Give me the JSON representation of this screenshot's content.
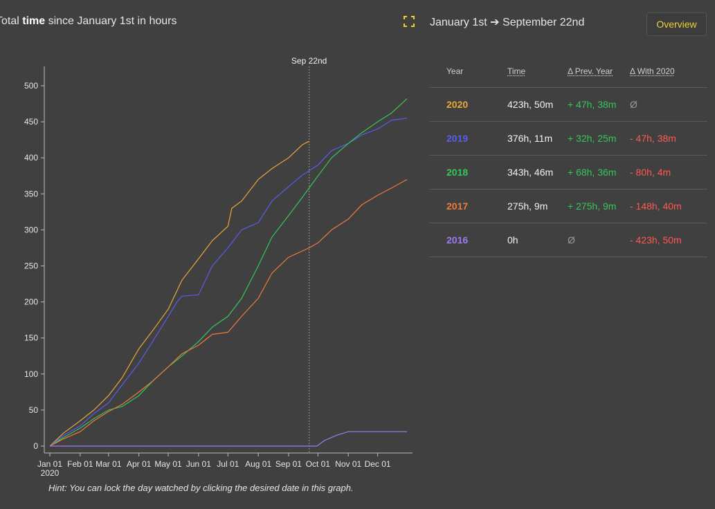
{
  "header": {
    "title_prefix": "Total ",
    "title_bold": "time",
    "title_suffix": " since January 1st in hours",
    "fullscreen_icon": "fullscreen-icon",
    "range_start": "January 1st",
    "range_arrow": "➔",
    "range_end": "September 22nd",
    "overview_label": "Overview"
  },
  "table": {
    "headers": {
      "year": "Year",
      "time": "Time",
      "prev": "Δ Prev. Year",
      "with": "Δ With 2020"
    },
    "rows": [
      {
        "year": "2020",
        "color": "#e8a838",
        "time": "423h, 50m",
        "prev": "+ 47h, 38m",
        "prev_class": "pos",
        "with": "Ø",
        "with_class": "muted"
      },
      {
        "year": "2019",
        "color": "#5b5bef",
        "time": "376h, 11m",
        "prev": "+ 32h, 25m",
        "prev_class": "pos",
        "with": "- 47h, 38m",
        "with_class": "neg"
      },
      {
        "year": "2018",
        "color": "#34c759",
        "time": "343h, 46m",
        "prev": "+ 68h, 36m",
        "prev_class": "pos",
        "with": "- 80h, 4m",
        "with_class": "neg"
      },
      {
        "year": "2017",
        "color": "#f07a3a",
        "time": "275h, 9m",
        "prev": "+ 275h, 9m",
        "prev_class": "pos",
        "with": "- 148h, 40m",
        "with_class": "neg"
      },
      {
        "year": "2016",
        "color": "#9c7cf2",
        "time": "0h",
        "prev": "Ø",
        "prev_class": "muted",
        "with": "- 423h, 50m",
        "with_class": "neg"
      }
    ]
  },
  "hint": "Hint: You can lock the day watched by clicking the desired date in this graph.",
  "chart_data": {
    "type": "line",
    "xlabel": "",
    "ylabel": "",
    "ylim": [
      0,
      530
    ],
    "xlim": [
      "2020-01-01",
      "2020-12-31"
    ],
    "yticks": [
      0,
      50,
      100,
      150,
      200,
      250,
      300,
      350,
      400,
      450,
      500
    ],
    "xticks": [
      {
        "date": "2020-01-01",
        "label": "Jan 01",
        "sub": "2020"
      },
      {
        "date": "2020-02-01",
        "label": "Feb 01",
        "sub": ""
      },
      {
        "date": "2020-03-01",
        "label": "Mar 01",
        "sub": ""
      },
      {
        "date": "2020-04-01",
        "label": "Apr 01",
        "sub": ""
      },
      {
        "date": "2020-05-01",
        "label": "May 01",
        "sub": ""
      },
      {
        "date": "2020-06-01",
        "label": "Jun 01",
        "sub": ""
      },
      {
        "date": "2020-07-01",
        "label": "Jul 01",
        "sub": ""
      },
      {
        "date": "2020-08-01",
        "label": "Aug 01",
        "sub": ""
      },
      {
        "date": "2020-09-01",
        "label": "Sep 01",
        "sub": ""
      },
      {
        "date": "2020-10-01",
        "label": "Oct 01",
        "sub": ""
      },
      {
        "date": "2020-11-01",
        "label": "Nov 01",
        "sub": ""
      },
      {
        "date": "2020-12-01",
        "label": "Dec 01",
        "sub": ""
      }
    ],
    "marker": {
      "date": "2020-09-22",
      "label": "Sep 22nd"
    },
    "series": [
      {
        "color": "#e8a838",
        "points": [
          [
            "2020-01-01",
            0
          ],
          [
            "2020-01-15",
            18
          ],
          [
            "2020-02-01",
            35
          ],
          [
            "2020-02-15",
            50
          ],
          [
            "2020-03-01",
            70
          ],
          [
            "2020-03-15",
            95
          ],
          [
            "2020-04-01",
            135
          ],
          [
            "2020-04-15",
            160
          ],
          [
            "2020-05-01",
            190
          ],
          [
            "2020-05-15",
            230
          ],
          [
            "2020-06-01",
            260
          ],
          [
            "2020-06-15",
            285
          ],
          [
            "2020-07-01",
            305
          ],
          [
            "2020-07-05",
            330
          ],
          [
            "2020-07-15",
            340
          ],
          [
            "2020-08-01",
            370
          ],
          [
            "2020-08-15",
            385
          ],
          [
            "2020-09-01",
            400
          ],
          [
            "2020-09-15",
            418
          ],
          [
            "2020-09-22",
            423
          ]
        ]
      },
      {
        "color": "#5b5bef",
        "points": [
          [
            "2020-01-01",
            0
          ],
          [
            "2020-01-15",
            15
          ],
          [
            "2020-02-01",
            28
          ],
          [
            "2020-02-15",
            45
          ],
          [
            "2020-03-01",
            60
          ],
          [
            "2020-03-15",
            85
          ],
          [
            "2020-04-01",
            115
          ],
          [
            "2020-04-15",
            145
          ],
          [
            "2020-05-01",
            180
          ],
          [
            "2020-05-10",
            200
          ],
          [
            "2020-05-15",
            208
          ],
          [
            "2020-06-01",
            210
          ],
          [
            "2020-06-15",
            250
          ],
          [
            "2020-07-01",
            275
          ],
          [
            "2020-07-15",
            300
          ],
          [
            "2020-08-01",
            310
          ],
          [
            "2020-08-15",
            340
          ],
          [
            "2020-09-01",
            360
          ],
          [
            "2020-09-15",
            376
          ],
          [
            "2020-10-01",
            390
          ],
          [
            "2020-10-15",
            410
          ],
          [
            "2020-11-01",
            420
          ],
          [
            "2020-11-15",
            432
          ],
          [
            "2020-12-01",
            440
          ],
          [
            "2020-12-15",
            452
          ],
          [
            "2020-12-31",
            455
          ]
        ]
      },
      {
        "color": "#34c759",
        "points": [
          [
            "2020-01-01",
            0
          ],
          [
            "2020-01-15",
            12
          ],
          [
            "2020-02-01",
            25
          ],
          [
            "2020-02-15",
            38
          ],
          [
            "2020-03-01",
            50
          ],
          [
            "2020-03-15",
            55
          ],
          [
            "2020-04-01",
            70
          ],
          [
            "2020-04-15",
            90
          ],
          [
            "2020-05-01",
            110
          ],
          [
            "2020-05-15",
            125
          ],
          [
            "2020-06-01",
            145
          ],
          [
            "2020-06-15",
            165
          ],
          [
            "2020-07-01",
            180
          ],
          [
            "2020-07-15",
            205
          ],
          [
            "2020-08-01",
            250
          ],
          [
            "2020-08-15",
            290
          ],
          [
            "2020-09-01",
            320
          ],
          [
            "2020-09-15",
            345
          ],
          [
            "2020-10-01",
            375
          ],
          [
            "2020-10-15",
            400
          ],
          [
            "2020-11-01",
            420
          ],
          [
            "2020-11-15",
            435
          ],
          [
            "2020-12-01",
            450
          ],
          [
            "2020-12-15",
            462
          ],
          [
            "2020-12-31",
            482
          ]
        ]
      },
      {
        "color": "#f07a3a",
        "points": [
          [
            "2020-01-01",
            0
          ],
          [
            "2020-01-15",
            10
          ],
          [
            "2020-02-01",
            20
          ],
          [
            "2020-02-15",
            35
          ],
          [
            "2020-03-01",
            48
          ],
          [
            "2020-03-15",
            58
          ],
          [
            "2020-04-01",
            75
          ],
          [
            "2020-04-15",
            90
          ],
          [
            "2020-05-01",
            110
          ],
          [
            "2020-05-15",
            128
          ],
          [
            "2020-06-01",
            140
          ],
          [
            "2020-06-15",
            155
          ],
          [
            "2020-07-01",
            158
          ],
          [
            "2020-07-15",
            180
          ],
          [
            "2020-08-01",
            205
          ],
          [
            "2020-08-15",
            240
          ],
          [
            "2020-09-01",
            262
          ],
          [
            "2020-09-22",
            275
          ],
          [
            "2020-10-01",
            282
          ],
          [
            "2020-10-15",
            300
          ],
          [
            "2020-11-01",
            315
          ],
          [
            "2020-11-15",
            335
          ],
          [
            "2020-12-01",
            348
          ],
          [
            "2020-12-15",
            358
          ],
          [
            "2020-12-31",
            370
          ]
        ]
      },
      {
        "color": "#9c7cf2",
        "points": [
          [
            "2020-01-01",
            0
          ],
          [
            "2020-09-30",
            0
          ],
          [
            "2020-10-08",
            8
          ],
          [
            "2020-10-20",
            15
          ],
          [
            "2020-11-01",
            20
          ],
          [
            "2020-12-31",
            20
          ]
        ]
      }
    ]
  }
}
